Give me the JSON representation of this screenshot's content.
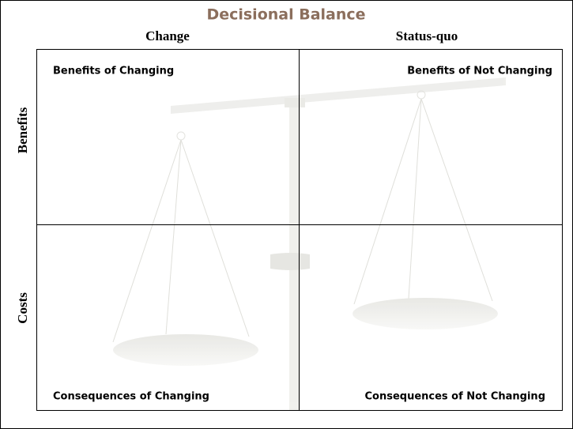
{
  "header": {
    "title": "Decisional Balance"
  },
  "columns": [
    "Change",
    "Status-quo"
  ],
  "rows": [
    "Benefits",
    "Costs"
  ],
  "quadrants": {
    "benefits_change": "Benefits of Changing",
    "benefits_status_quo": "Benefits of Not Changing",
    "costs_change": "Consequences of Changing",
    "costs_status_quo": "Consequences of Not Changing"
  }
}
